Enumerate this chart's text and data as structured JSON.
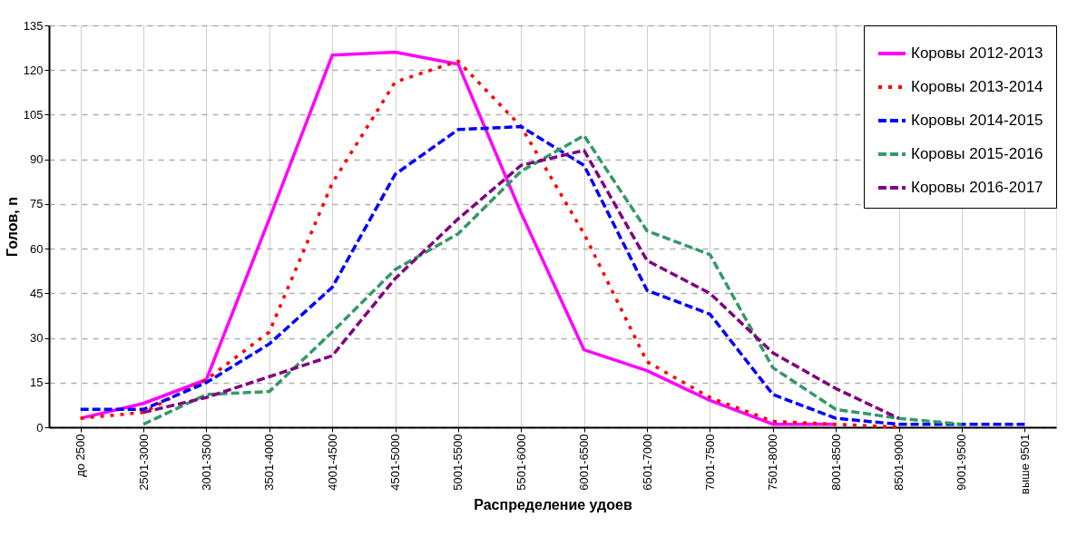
{
  "chart_data": {
    "type": "line",
    "xlabel": "Распределение удоев",
    "ylabel": "Голов, n",
    "categories": [
      "до 2500",
      "2501-3000",
      "3001-3500",
      "3501-4000",
      "4001-4500",
      "4501-5000",
      "5001-5500",
      "5501-6000",
      "6001-6500",
      "6501-7000",
      "7001-7500",
      "7501-8000",
      "8001-8500",
      "8501-9000",
      "9001-9500",
      "выше 9501"
    ],
    "series": [
      {
        "name": "Коровы 2012-2013",
        "color": "#ff00ff",
        "line_style": "solid",
        "values": [
          3,
          8,
          16,
          70,
          125,
          126,
          122,
          72,
          26,
          19,
          9,
          1,
          1,
          null,
          null,
          null
        ]
      },
      {
        "name": "Коровы 2013-2014",
        "color": "#ff0000",
        "line_style": "dotted",
        "values": [
          3,
          5,
          16,
          32,
          82,
          116,
          123,
          101,
          65,
          22,
          10,
          2,
          1,
          0,
          null,
          null
        ]
      },
      {
        "name": "Коровы 2014-2015",
        "color": "#0000ff",
        "line_style": "dashed",
        "values": [
          6,
          6,
          15,
          28,
          47,
          85,
          100,
          101,
          88,
          46,
          38,
          11,
          3,
          1,
          1,
          1
        ]
      },
      {
        "name": "Коровы 2015-2016",
        "color": "#339966",
        "line_style": "dashed",
        "values": [
          null,
          1,
          11,
          12,
          32,
          53,
          65,
          86,
          98,
          66,
          58,
          20,
          6,
          3,
          1,
          null
        ]
      },
      {
        "name": "Коровы 2016-2017",
        "color": "#800080",
        "line_style": "dashed",
        "values": [
          null,
          5,
          10,
          17,
          24,
          50,
          70,
          88,
          93,
          56,
          45,
          25,
          13,
          3,
          null,
          null
        ]
      }
    ],
    "ylim": [
      0,
      135
    ],
    "yticks": [
      0,
      15,
      30,
      45,
      60,
      75,
      90,
      105,
      120,
      135
    ],
    "grid": true,
    "legend": "top right",
    "marker": "none"
  }
}
